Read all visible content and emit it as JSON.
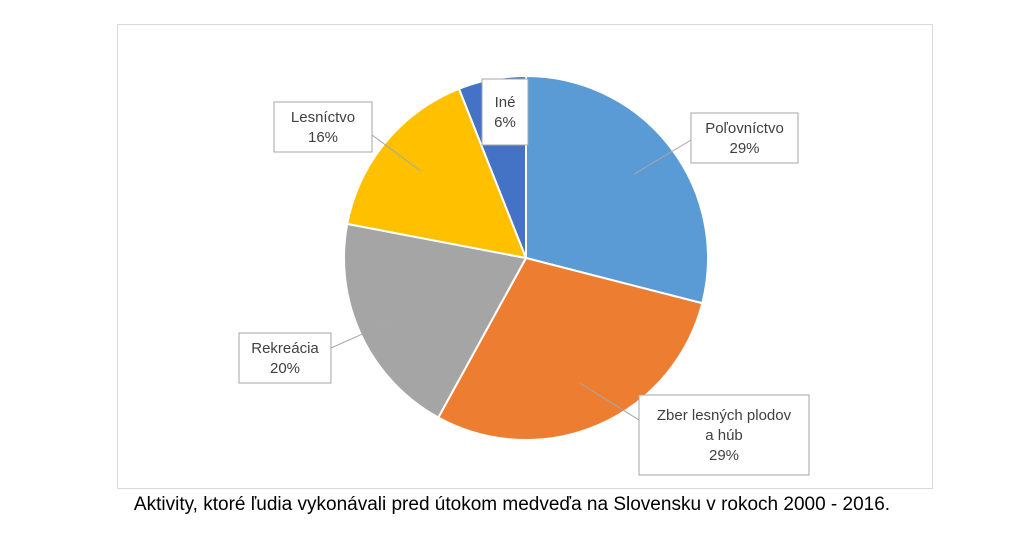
{
  "chart_data": {
    "type": "pie",
    "start_angle_deg": 0,
    "direction": "clockwise",
    "slices": [
      {
        "label_lines": [
          "Poľovníctvo"
        ],
        "pct_label": "29%",
        "value": 29,
        "color": "#5b9bd5"
      },
      {
        "label_lines": [
          "Zber lesných plodov",
          "a húb"
        ],
        "pct_label": "29%",
        "value": 29,
        "color": "#ed7d31"
      },
      {
        "label_lines": [
          "Rekreácia"
        ],
        "pct_label": "20%",
        "value": 20,
        "color": "#a5a5a5"
      },
      {
        "label_lines": [
          "Lesníctvo"
        ],
        "pct_label": "16%",
        "value": 16,
        "color": "#ffc000"
      },
      {
        "label_lines": [
          "Iné"
        ],
        "pct_label": "6%",
        "value": 6,
        "color": "#4472c4"
      }
    ]
  },
  "caption": "Aktivity, ktoré ľudia vykonávali pred útokom medveďa na Slovensku v rokoch 2000 - 2016."
}
